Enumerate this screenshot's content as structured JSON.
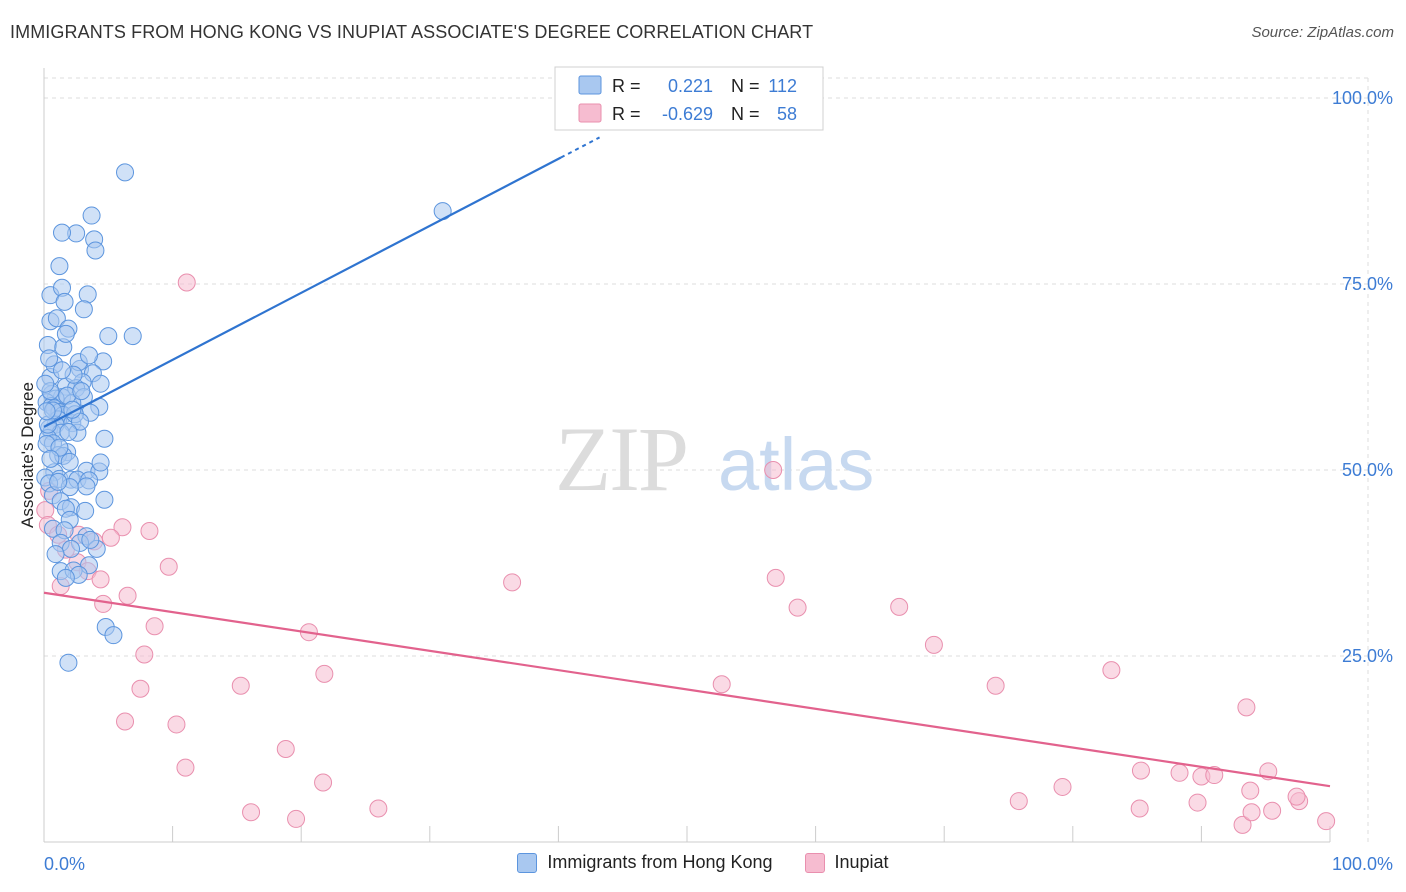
{
  "header": {
    "title": "IMMIGRANTS FROM HONG KONG VS INUPIAT ASSOCIATE'S DEGREE CORRELATION CHART",
    "source": "Source: ZipAtlas.com"
  },
  "watermark": {
    "zip": "ZIP",
    "atlas": "atlas"
  },
  "legend_box": [
    {
      "r_label": "R =",
      "r_value": "0.221",
      "n_label": "N =",
      "n_value": "112"
    },
    {
      "r_label": "R =",
      "r_value": "-0.629",
      "n_label": "N =",
      "n_value": "58"
    }
  ],
  "bottom_legend": [
    "Immigrants from Hong Kong",
    "Inupiat"
  ],
  "colors": {
    "blue_fill": "#a9c8f0",
    "blue_stroke": "#5c95de",
    "blue_line": "#2f74d0",
    "pink_fill": "#f6bcd0",
    "pink_stroke": "#e98fae",
    "pink_line": "#e2628d",
    "tick_text": "#3d7cd4",
    "grid": "#dddddd"
  },
  "chart_data": {
    "type": "scatter",
    "title": "IMMIGRANTS FROM HONG KONG VS INUPIAT ASSOCIATE'S DEGREE CORRELATION CHART",
    "xlabel": "",
    "ylabel": "Associate's Degree",
    "xlim": [
      0,
      100
    ],
    "ylim": [
      0,
      100
    ],
    "x_tick_labels": [
      "0.0%",
      "100.0%"
    ],
    "y_tick_labels": [
      "100.0%",
      "75.0%",
      "50.0%",
      "25.0%"
    ],
    "y_ticks": [
      100,
      75,
      50,
      25
    ],
    "grid": true,
    "legend_position": "top-center",
    "series": [
      {
        "name": "Immigrants from Hong Kong",
        "color": "#5c95de",
        "trend": {
          "x": [
            0,
            40.2
          ],
          "y": [
            55.8,
            92.0
          ]
        },
        "points": [
          [
            6.3,
            90.0
          ],
          [
            3.7,
            84.2
          ],
          [
            2.5,
            81.8
          ],
          [
            1.4,
            81.9
          ],
          [
            3.9,
            81.0
          ],
          [
            4.0,
            79.5
          ],
          [
            1.2,
            77.4
          ],
          [
            0.5,
            73.5
          ],
          [
            1.4,
            74.5
          ],
          [
            3.4,
            73.6
          ],
          [
            1.6,
            72.6
          ],
          [
            3.1,
            71.6
          ],
          [
            0.5,
            70.0
          ],
          [
            1.0,
            70.4
          ],
          [
            1.9,
            69.0
          ],
          [
            5.0,
            68.0
          ],
          [
            6.9,
            68.0
          ],
          [
            0.3,
            66.8
          ],
          [
            1.5,
            66.5
          ],
          [
            4.6,
            64.6
          ],
          [
            2.8,
            63.6
          ],
          [
            3.8,
            63.0
          ],
          [
            0.5,
            62.5
          ],
          [
            3.0,
            61.8
          ],
          [
            4.4,
            61.6
          ],
          [
            1.7,
            61.2
          ],
          [
            2.5,
            61.0
          ],
          [
            0.6,
            60.2
          ],
          [
            1.4,
            59.8
          ],
          [
            3.1,
            59.8
          ],
          [
            0.9,
            59.6
          ],
          [
            0.2,
            59.1
          ],
          [
            2.2,
            59.0
          ],
          [
            0.6,
            58.6
          ],
          [
            4.3,
            58.5
          ],
          [
            0.8,
            58.3
          ],
          [
            3.6,
            57.7
          ],
          [
            1.2,
            57.8
          ],
          [
            1.5,
            57.4
          ],
          [
            1.1,
            56.8
          ],
          [
            2.2,
            56.3
          ],
          [
            0.9,
            56.1
          ],
          [
            0.4,
            55.6
          ],
          [
            0.6,
            55.2
          ],
          [
            1.3,
            55.0
          ],
          [
            2.6,
            55.0
          ],
          [
            0.3,
            54.3
          ],
          [
            4.7,
            54.2
          ],
          [
            0.7,
            53.6
          ],
          [
            1.8,
            52.4
          ],
          [
            1.1,
            52.0
          ],
          [
            1.5,
            51.9
          ],
          [
            2.0,
            51.1
          ],
          [
            3.3,
            49.9
          ],
          [
            4.3,
            49.8
          ],
          [
            0.8,
            49.7
          ],
          [
            0.1,
            49.0
          ],
          [
            1.2,
            48.8
          ],
          [
            2.1,
            48.7
          ],
          [
            2.6,
            48.7
          ],
          [
            3.5,
            48.6
          ],
          [
            0.4,
            48.2
          ],
          [
            3.3,
            47.8
          ],
          [
            2.0,
            47.7
          ],
          [
            0.7,
            46.6
          ],
          [
            4.7,
            46.0
          ],
          [
            1.3,
            45.8
          ],
          [
            2.1,
            45.0
          ],
          [
            1.7,
            44.8
          ],
          [
            3.2,
            44.5
          ],
          [
            2.0,
            43.3
          ],
          [
            0.7,
            42.1
          ],
          [
            1.6,
            41.9
          ],
          [
            3.3,
            41.1
          ],
          [
            1.3,
            40.2
          ],
          [
            2.8,
            40.2
          ],
          [
            2.1,
            39.4
          ],
          [
            4.1,
            39.4
          ],
          [
            0.9,
            38.7
          ],
          [
            3.5,
            37.2
          ],
          [
            1.3,
            36.4
          ],
          [
            2.3,
            36.5
          ],
          [
            2.7,
            35.9
          ],
          [
            1.7,
            35.5
          ],
          [
            4.8,
            28.9
          ],
          [
            5.4,
            27.8
          ],
          [
            1.9,
            24.1
          ],
          [
            0.5,
            60.6
          ],
          [
            0.3,
            56.1
          ],
          [
            4.4,
            51.0
          ],
          [
            3.6,
            40.6
          ],
          [
            0.8,
            64.2
          ],
          [
            2.7,
            64.5
          ],
          [
            1.8,
            60.0
          ],
          [
            0.2,
            53.5
          ],
          [
            1.2,
            53.0
          ],
          [
            2.4,
            57.5
          ],
          [
            2.8,
            56.5
          ],
          [
            0.5,
            51.5
          ],
          [
            1.1,
            48.4
          ],
          [
            2.3,
            62.8
          ],
          [
            3.5,
            65.4
          ],
          [
            0.1,
            61.6
          ],
          [
            1.7,
            68.3
          ],
          [
            0.4,
            65.0
          ],
          [
            2.2,
            58.1
          ],
          [
            2.9,
            60.6
          ],
          [
            1.4,
            63.4
          ],
          [
            0.7,
            58.0
          ],
          [
            1.9,
            55.1
          ],
          [
            0.2,
            57.9
          ],
          [
            31.0,
            84.8
          ]
        ]
      },
      {
        "name": "Inupiat",
        "color": "#e98fae",
        "trend": {
          "x": [
            0,
            100
          ],
          "y": [
            33.5,
            7.5
          ]
        },
        "points": [
          [
            11.1,
            75.2
          ],
          [
            56.7,
            50.0
          ],
          [
            0.4,
            47.2
          ],
          [
            0.1,
            44.6
          ],
          [
            0.3,
            42.6
          ],
          [
            6.1,
            42.3
          ],
          [
            8.2,
            41.8
          ],
          [
            1.1,
            41.3
          ],
          [
            2.7,
            41.3
          ],
          [
            5.2,
            40.9
          ],
          [
            3.9,
            40.4
          ],
          [
            1.7,
            39.3
          ],
          [
            2.6,
            37.6
          ],
          [
            9.7,
            37.0
          ],
          [
            3.4,
            36.4
          ],
          [
            4.4,
            35.3
          ],
          [
            36.4,
            34.9
          ],
          [
            1.3,
            34.4
          ],
          [
            56.9,
            35.5
          ],
          [
            6.5,
            33.1
          ],
          [
            4.6,
            32.0
          ],
          [
            58.6,
            31.5
          ],
          [
            66.5,
            31.6
          ],
          [
            8.6,
            29.0
          ],
          [
            20.6,
            28.2
          ],
          [
            69.2,
            26.5
          ],
          [
            7.8,
            25.2
          ],
          [
            21.8,
            22.6
          ],
          [
            83.0,
            23.1
          ],
          [
            7.5,
            20.6
          ],
          [
            15.3,
            21.0
          ],
          [
            52.7,
            21.2
          ],
          [
            74.0,
            21.0
          ],
          [
            93.5,
            18.1
          ],
          [
            6.3,
            16.2
          ],
          [
            10.3,
            15.8
          ],
          [
            18.8,
            12.5
          ],
          [
            11.0,
            10.0
          ],
          [
            85.3,
            9.6
          ],
          [
            88.3,
            9.3
          ],
          [
            95.2,
            9.5
          ],
          [
            90.0,
            8.8
          ],
          [
            91.0,
            9.0
          ],
          [
            21.7,
            8.0
          ],
          [
            79.2,
            7.4
          ],
          [
            97.6,
            5.5
          ],
          [
            93.8,
            6.9
          ],
          [
            75.8,
            5.5
          ],
          [
            89.7,
            5.3
          ],
          [
            85.2,
            4.5
          ],
          [
            95.5,
            4.2
          ],
          [
            93.2,
            2.3
          ],
          [
            97.4,
            6.1
          ],
          [
            16.1,
            4.0
          ],
          [
            26.0,
            4.5
          ],
          [
            19.6,
            3.1
          ],
          [
            93.9,
            4.0
          ],
          [
            99.7,
            2.8
          ]
        ]
      }
    ]
  }
}
